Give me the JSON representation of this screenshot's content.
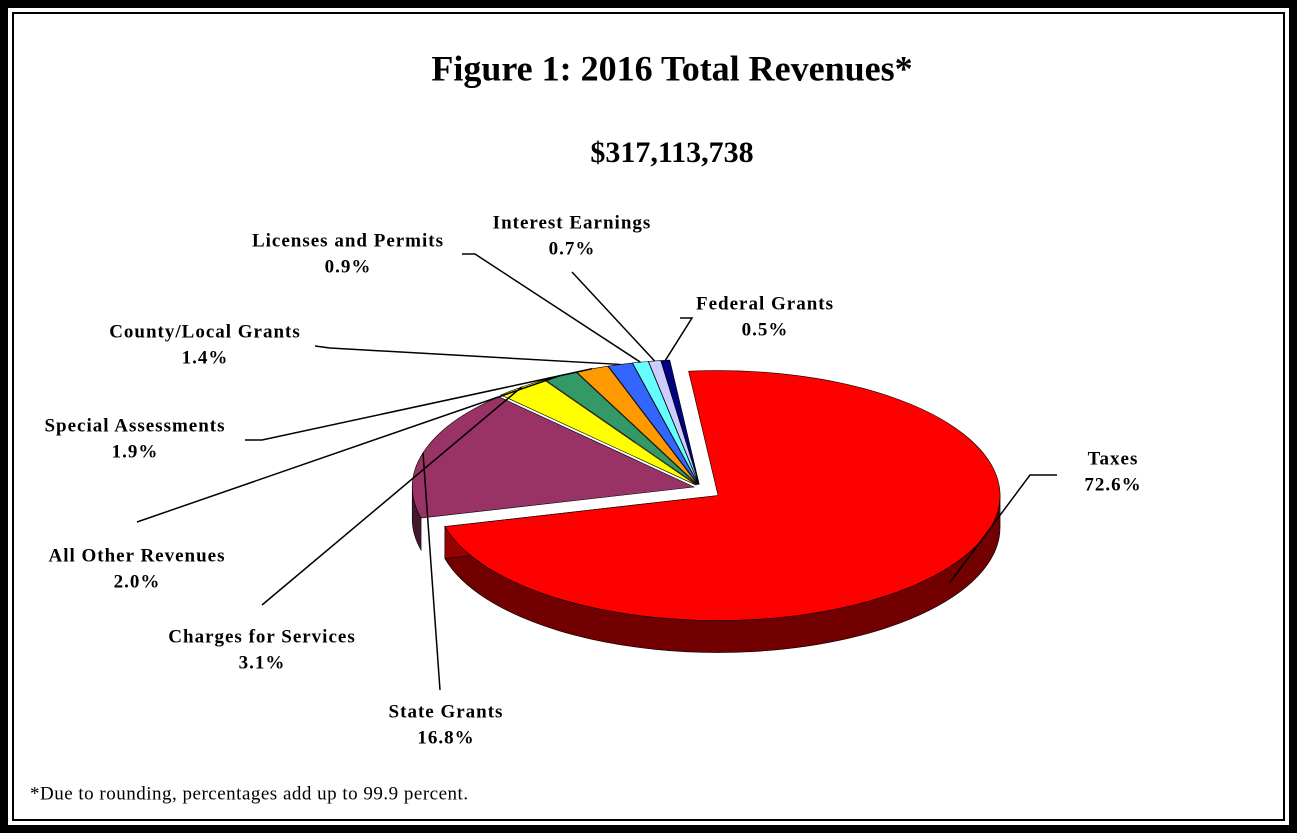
{
  "chart_data": {
    "type": "pie",
    "title": "Figure 1:  2016 Total Revenues*",
    "subtitle": "$317,113,738",
    "note": "*Due to rounding, percentages add up to 99.9 percent.",
    "categories": [
      "Taxes",
      "State Grants",
      "Charges for Services",
      "All Other Revenues",
      "Special Assessments",
      "County/Local Grants",
      "Licenses and Permits",
      "Interest Earnings",
      "Federal Grants"
    ],
    "values": [
      72.6,
      16.8,
      3.1,
      2.0,
      1.9,
      1.4,
      0.9,
      0.7,
      0.5
    ],
    "value_labels": [
      "72.6%",
      "16.8%",
      "3.1%",
      "2.0%",
      "1.9%",
      "1.4%",
      "0.9%",
      "0.7%",
      "0.5%"
    ],
    "colors": [
      "#ff0000",
      "#993366",
      "#ffff00",
      "#339966",
      "#ff9900",
      "#3366ff",
      "#66ffff",
      "#ccccff",
      "#000080"
    ]
  }
}
